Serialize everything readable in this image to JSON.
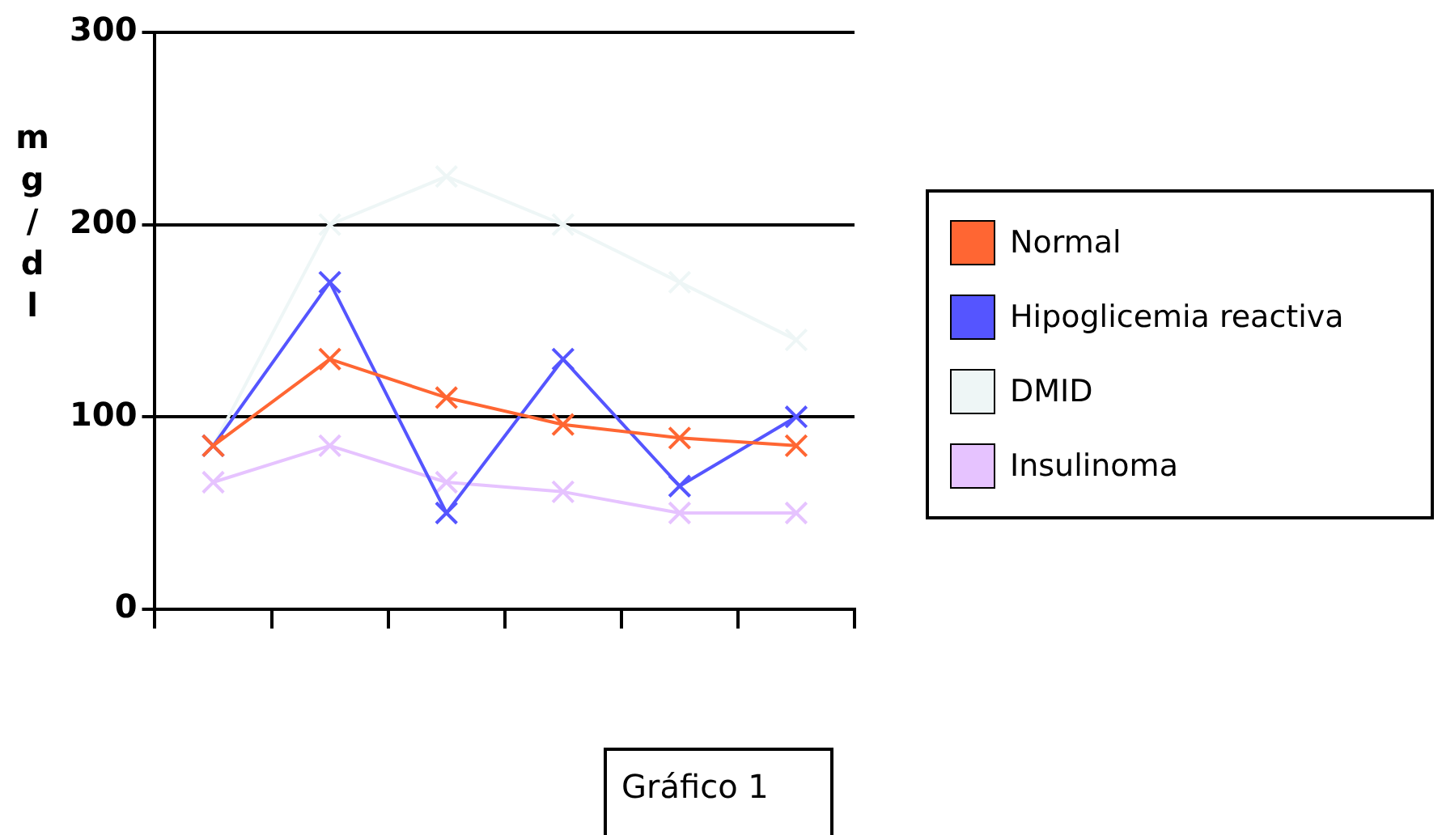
{
  "chart_data": {
    "type": "line",
    "ylabel": "mg/dl",
    "categories": [
      null,
      null,
      null,
      null,
      null,
      null
    ],
    "series": [
      {
        "name": "Normal",
        "color": "#ff6633",
        "values": [
          85,
          130,
          110,
          96,
          89,
          85
        ]
      },
      {
        "name": "Hipoglicemia reactiva",
        "color": "#5555ff",
        "values": [
          85,
          170,
          50,
          130,
          64,
          100
        ]
      },
      {
        "name": "DMID",
        "color": "#eef6f6",
        "values": [
          85,
          200,
          225,
          200,
          170,
          140
        ]
      },
      {
        "name": "Insulinoma",
        "color": "#e6c3ff",
        "values": [
          66,
          85,
          66,
          61,
          50,
          50
        ]
      }
    ],
    "ylim": [
      0,
      300
    ],
    "yticks": [
      0,
      100,
      200,
      300
    ],
    "grid": "y",
    "legend": "right",
    "marker": "cross",
    "line_style": "solid",
    "annotations": [
      "Gráfico 1"
    ]
  }
}
